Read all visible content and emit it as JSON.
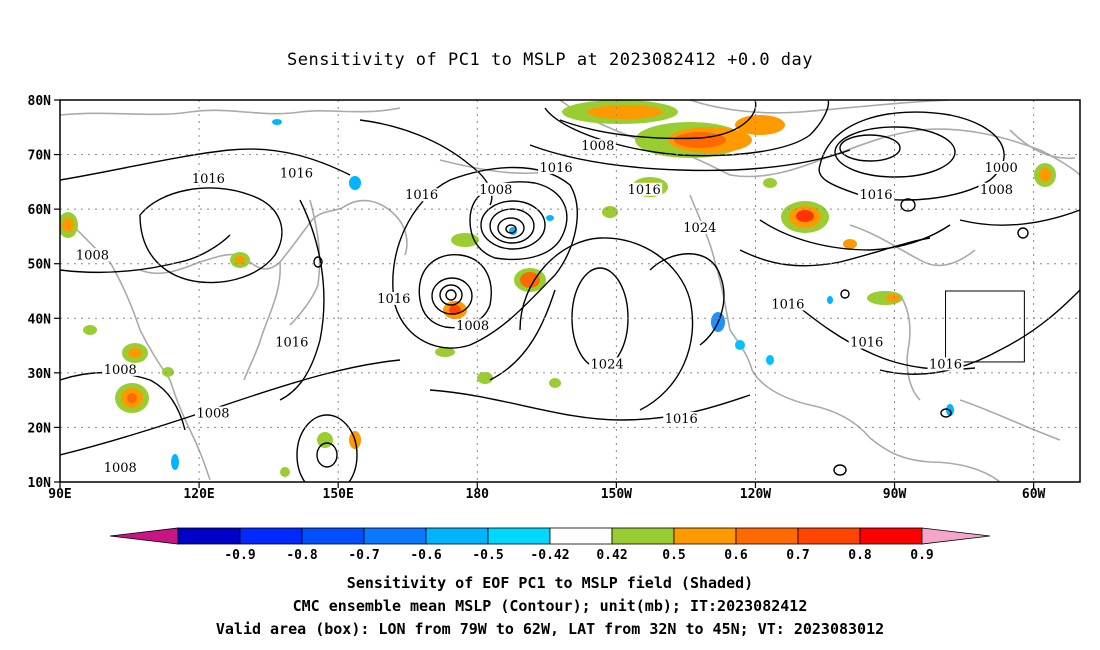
{
  "title": "Sensitivity of PC1 to MSLP at 2023082412 +0.0 day",
  "lat_ticks": [
    "80N",
    "70N",
    "60N",
    "50N",
    "40N",
    "30N",
    "20N",
    "10N"
  ],
  "lon_ticks": [
    "90E",
    "120E",
    "150E",
    "180",
    "150W",
    "120W",
    "90W",
    "60W"
  ],
  "contour_labels": [
    {
      "text": "1008",
      "lon": 206,
      "lat": 71
    },
    {
      "text": "1016",
      "lon": 197,
      "lat": 67
    },
    {
      "text": "1016",
      "lon": 122,
      "lat": 65
    },
    {
      "text": "1016",
      "lon": 141,
      "lat": 66
    },
    {
      "text": "1016",
      "lon": 168,
      "lat": 62
    },
    {
      "text": "1008",
      "lon": 184,
      "lat": 63
    },
    {
      "text": "1016",
      "lon": 216,
      "lat": 63
    },
    {
      "text": "1024",
      "lon": 228,
      "lat": 56
    },
    {
      "text": "1016",
      "lon": 266,
      "lat": 62
    },
    {
      "text": "1000",
      "lon": 293,
      "lat": 67
    },
    {
      "text": "1008",
      "lon": 292,
      "lat": 63
    },
    {
      "text": "1008",
      "lon": 97,
      "lat": 51
    },
    {
      "text": "1016",
      "lon": 162,
      "lat": 43
    },
    {
      "text": "1008",
      "lon": 179,
      "lat": 38
    },
    {
      "text": "1016",
      "lon": 247,
      "lat": 42
    },
    {
      "text": "1016",
      "lon": 140,
      "lat": 35
    },
    {
      "text": "1016",
      "lon": 264,
      "lat": 35
    },
    {
      "text": "1016",
      "lon": 281,
      "lat": 31
    },
    {
      "text": "1024",
      "lon": 208,
      "lat": 31
    },
    {
      "text": "1008",
      "lon": 103,
      "lat": 30
    },
    {
      "text": "1008",
      "lon": 123,
      "lat": 22
    },
    {
      "text": "1016",
      "lon": 224,
      "lat": 21
    },
    {
      "text": "1008",
      "lon": 103,
      "lat": 12
    }
  ],
  "legend": {
    "labels": [
      "-0.9",
      "-0.8",
      "-0.7",
      "-0.6",
      "-0.5",
      "-0.42",
      "0.42",
      "0.5",
      "0.6",
      "0.7",
      "0.8",
      "0.9"
    ],
    "colors": [
      "#c71585",
      "#0000c8",
      "#0028ff",
      "#0050ff",
      "#0a78ff",
      "#00b4ff",
      "#00d8ff",
      "#ffffff",
      "#9acd32",
      "#ff9900",
      "#ff6a00",
      "#ff4500",
      "#ff0000",
      "#f4a6c8"
    ]
  },
  "box": {
    "lon_min": 281,
    "lon_max": 298,
    "lat_min": 32,
    "lat_max": 45
  },
  "footer": [
    "Sensitivity of EOF PC1 to MSLP field (Shaded)",
    "CMC ensemble mean MSLP (Contour); unit(mb); IT:2023082412",
    "Valid area (box): LON from 79W to 62W, LAT from 32N to 45N; VT: 2023083012"
  ]
}
